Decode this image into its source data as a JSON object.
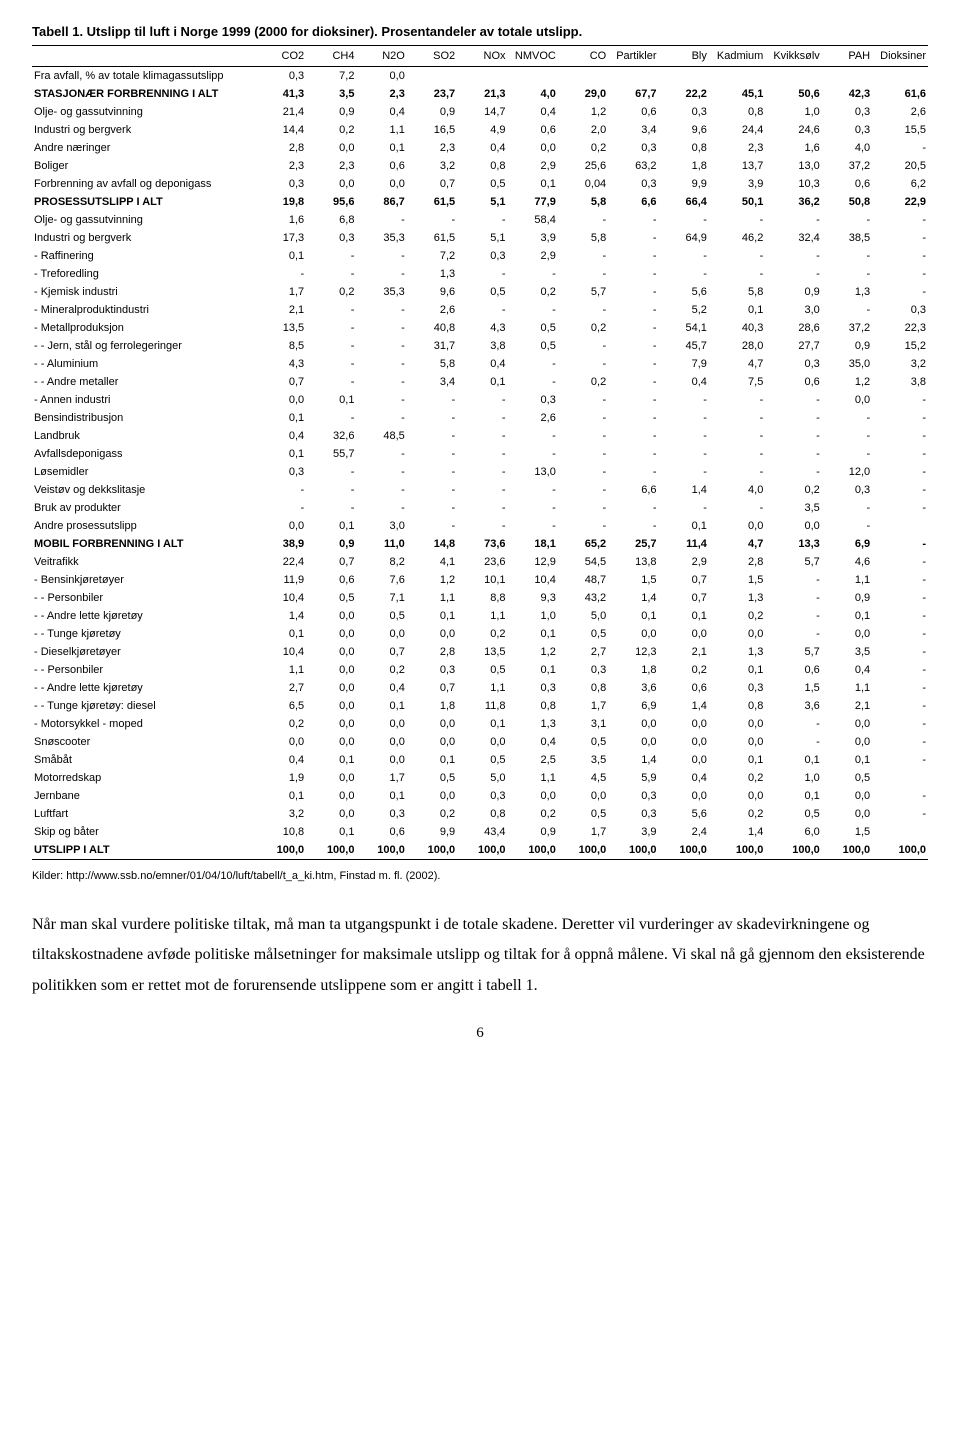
{
  "title": "Tabell 1. Utslipp til luft i Norge 1999 (2000 for dioksiner). Prosentandeler av totale utslipp.",
  "columns": [
    "",
    "CO2",
    "CH4",
    "N2O",
    "SO2",
    "NOx",
    "NMVOC",
    "CO",
    "Partikler",
    "Bly",
    "Kadmium",
    "Kvikksølv",
    "PAH",
    "Dioksiner"
  ],
  "rows": [
    {
      "bold": false,
      "cells": [
        "Fra avfall, % av totale klimagassutslipp",
        "0,3",
        "7,2",
        "0,0",
        "",
        "",
        "",
        "",
        "",
        "",
        "",
        "",
        "",
        ""
      ]
    },
    {
      "bold": true,
      "cells": [
        "STASJONÆR FORBRENNING I ALT",
        "41,3",
        "3,5",
        "2,3",
        "23,7",
        "21,3",
        "4,0",
        "29,0",
        "67,7",
        "22,2",
        "45,1",
        "50,6",
        "42,3",
        "61,6"
      ]
    },
    {
      "bold": false,
      "cells": [
        "Olje- og gassutvinning",
        "21,4",
        "0,9",
        "0,4",
        "0,9",
        "14,7",
        "0,4",
        "1,2",
        "0,6",
        "0,3",
        "0,8",
        "1,0",
        "0,3",
        "2,6"
      ]
    },
    {
      "bold": false,
      "cells": [
        "Industri og bergverk",
        "14,4",
        "0,2",
        "1,1",
        "16,5",
        "4,9",
        "0,6",
        "2,0",
        "3,4",
        "9,6",
        "24,4",
        "24,6",
        "0,3",
        "15,5"
      ]
    },
    {
      "bold": false,
      "cells": [
        "Andre næringer",
        "2,8",
        "0,0",
        "0,1",
        "2,3",
        "0,4",
        "0,0",
        "0,2",
        "0,3",
        "0,8",
        "2,3",
        "1,6",
        "4,0",
        "-"
      ]
    },
    {
      "bold": false,
      "cells": [
        "Boliger",
        "2,3",
        "2,3",
        "0,6",
        "3,2",
        "0,8",
        "2,9",
        "25,6",
        "63,2",
        "1,8",
        "13,7",
        "13,0",
        "37,2",
        "20,5"
      ]
    },
    {
      "bold": false,
      "cells": [
        "Forbrenning av avfall og deponigass",
        "0,3",
        "0,0",
        "0,0",
        "0,7",
        "0,5",
        "0,1",
        "0,04",
        "0,3",
        "9,9",
        "3,9",
        "10,3",
        "0,6",
        "6,2"
      ]
    },
    {
      "bold": true,
      "cells": [
        "PROSESSUTSLIPP I ALT",
        "19,8",
        "95,6",
        "86,7",
        "61,5",
        "5,1",
        "77,9",
        "5,8",
        "6,6",
        "66,4",
        "50,1",
        "36,2",
        "50,8",
        "22,9"
      ]
    },
    {
      "bold": false,
      "cells": [
        "Olje- og gassutvinning",
        "1,6",
        "6,8",
        "-",
        "-",
        "-",
        "58,4",
        "-",
        "-",
        "-",
        "-",
        "-",
        "-",
        "-"
      ]
    },
    {
      "bold": false,
      "cells": [
        "Industri og bergverk",
        "17,3",
        "0,3",
        "35,3",
        "61,5",
        "5,1",
        "3,9",
        "5,8",
        "-",
        "64,9",
        "46,2",
        "32,4",
        "38,5",
        "-"
      ]
    },
    {
      "bold": false,
      "cells": [
        " - Raffinering",
        "0,1",
        "-",
        "-",
        "7,2",
        "0,3",
        "2,9",
        "-",
        "-",
        "-",
        "-",
        "-",
        "-",
        "-"
      ]
    },
    {
      "bold": false,
      "cells": [
        " - Treforedling",
        "-",
        "-",
        "-",
        "1,3",
        "-",
        "-",
        "-",
        "-",
        "-",
        "-",
        "-",
        "-",
        "-"
      ]
    },
    {
      "bold": false,
      "cells": [
        " - Kjemisk industri",
        "1,7",
        "0,2",
        "35,3",
        "9,6",
        "0,5",
        "0,2",
        "5,7",
        "-",
        "5,6",
        "5,8",
        "0,9",
        "1,3",
        "-"
      ]
    },
    {
      "bold": false,
      "cells": [
        " - Mineralproduktindustri",
        "2,1",
        "-",
        "-",
        "2,6",
        "-",
        "-",
        "-",
        "-",
        "5,2",
        "0,1",
        "3,0",
        "-",
        "0,3"
      ]
    },
    {
      "bold": false,
      "cells": [
        " - Metallproduksjon",
        "13,5",
        "-",
        "-",
        "40,8",
        "4,3",
        "0,5",
        "0,2",
        "-",
        "54,1",
        "40,3",
        "28,6",
        "37,2",
        "22,3"
      ]
    },
    {
      "bold": false,
      "cells": [
        "- - Jern, stål og ferrolegeringer",
        "8,5",
        "-",
        "-",
        "31,7",
        "3,8",
        "0,5",
        "-",
        "-",
        "45,7",
        "28,0",
        "27,7",
        "0,9",
        "15,2"
      ]
    },
    {
      "bold": false,
      "cells": [
        "- - Aluminium",
        "4,3",
        "-",
        "-",
        "5,8",
        "0,4",
        "-",
        "-",
        "-",
        "7,9",
        "4,7",
        "0,3",
        "35,0",
        "3,2"
      ]
    },
    {
      "bold": false,
      "cells": [
        "- - Andre metaller",
        "0,7",
        "-",
        "-",
        "3,4",
        "0,1",
        "-",
        "0,2",
        "-",
        "0,4",
        "7,5",
        "0,6",
        "1,2",
        "3,8"
      ]
    },
    {
      "bold": false,
      "cells": [
        " - Annen industri",
        "0,0",
        "0,1",
        "-",
        "-",
        "-",
        "0,3",
        "-",
        "-",
        "-",
        "-",
        "-",
        "0,0",
        "-"
      ]
    },
    {
      "bold": false,
      "cells": [
        "Bensindistribusjon",
        "0,1",
        "-",
        "-",
        "-",
        "-",
        "2,6",
        "-",
        "-",
        "-",
        "-",
        "-",
        "-",
        "-"
      ]
    },
    {
      "bold": false,
      "cells": [
        "Landbruk",
        "0,4",
        "32,6",
        "48,5",
        "-",
        "-",
        "-",
        "-",
        "-",
        "-",
        "-",
        "-",
        "-",
        "-"
      ]
    },
    {
      "bold": false,
      "cells": [
        "Avfallsdeponigass",
        "0,1",
        "55,7",
        "-",
        "-",
        "-",
        "-",
        "-",
        "-",
        "-",
        "-",
        "-",
        "-",
        "-"
      ]
    },
    {
      "bold": false,
      "cells": [
        "Løsemidler",
        "0,3",
        "-",
        "-",
        "-",
        "-",
        "13,0",
        "-",
        "-",
        "-",
        "-",
        "-",
        "12,0",
        "-"
      ]
    },
    {
      "bold": false,
      "cells": [
        "Veistøv og dekkslitasje",
        "-",
        "-",
        "-",
        "-",
        "-",
        "-",
        "-",
        "6,6",
        "1,4",
        "4,0",
        "0,2",
        "0,3",
        "-"
      ]
    },
    {
      "bold": false,
      "cells": [
        "Bruk av produkter",
        "-",
        "-",
        "-",
        "-",
        "-",
        "-",
        "-",
        "-",
        "-",
        "-",
        "3,5",
        "-",
        "-"
      ]
    },
    {
      "bold": false,
      "cells": [
        "Andre prosessutslipp",
        "0,0",
        "0,1",
        "3,0",
        "-",
        "-",
        "-",
        "-",
        "-",
        "0,1",
        "0,0",
        "0,0",
        "-",
        ""
      ]
    },
    {
      "bold": true,
      "cells": [
        "MOBIL FORBRENNING I ALT",
        "38,9",
        "0,9",
        "11,0",
        "14,8",
        "73,6",
        "18,1",
        "65,2",
        "25,7",
        "11,4",
        "4,7",
        "13,3",
        "6,9",
        "-"
      ]
    },
    {
      "bold": false,
      "cells": [
        "Veitrafikk",
        "22,4",
        "0,7",
        "8,2",
        "4,1",
        "23,6",
        "12,9",
        "54,5",
        "13,8",
        "2,9",
        "2,8",
        "5,7",
        "4,6",
        "-"
      ]
    },
    {
      "bold": false,
      "cells": [
        " - Bensinkjøretøyer",
        "11,9",
        "0,6",
        "7,6",
        "1,2",
        "10,1",
        "10,4",
        "48,7",
        "1,5",
        "0,7",
        "1,5",
        "-",
        "1,1",
        "-"
      ]
    },
    {
      "bold": false,
      "cells": [
        "- - Personbiler",
        "10,4",
        "0,5",
        "7,1",
        "1,1",
        "8,8",
        "9,3",
        "43,2",
        "1,4",
        "0,7",
        "1,3",
        "-",
        "0,9",
        "-"
      ]
    },
    {
      "bold": false,
      "cells": [
        "- - Andre lette kjøretøy",
        "1,4",
        "0,0",
        "0,5",
        "0,1",
        "1,1",
        "1,0",
        "5,0",
        "0,1",
        "0,1",
        "0,2",
        "-",
        "0,1",
        "-"
      ]
    },
    {
      "bold": false,
      "cells": [
        "- - Tunge kjøretøy",
        "0,1",
        "0,0",
        "0,0",
        "0,0",
        "0,2",
        "0,1",
        "0,5",
        "0,0",
        "0,0",
        "0,0",
        "-",
        "0,0",
        "-"
      ]
    },
    {
      "bold": false,
      "cells": [
        " - Dieselkjøretøyer",
        "10,4",
        "0,0",
        "0,7",
        "2,8",
        "13,5",
        "1,2",
        "2,7",
        "12,3",
        "2,1",
        "1,3",
        "5,7",
        "3,5",
        "-"
      ]
    },
    {
      "bold": false,
      "cells": [
        "- - Personbiler",
        "1,1",
        "0,0",
        "0,2",
        "0,3",
        "0,5",
        "0,1",
        "0,3",
        "1,8",
        "0,2",
        "0,1",
        "0,6",
        "0,4",
        "-"
      ]
    },
    {
      "bold": false,
      "cells": [
        "- - Andre lette kjøretøy",
        "2,7",
        "0,0",
        "0,4",
        "0,7",
        "1,1",
        "0,3",
        "0,8",
        "3,6",
        "0,6",
        "0,3",
        "1,5",
        "1,1",
        "-"
      ]
    },
    {
      "bold": false,
      "cells": [
        "- - Tunge kjøretøy: diesel",
        "6,5",
        "0,0",
        "0,1",
        "1,8",
        "11,8",
        "0,8",
        "1,7",
        "6,9",
        "1,4",
        "0,8",
        "3,6",
        "2,1",
        "-"
      ]
    },
    {
      "bold": false,
      "cells": [
        " - Motorsykkel - moped",
        "0,2",
        "0,0",
        "0,0",
        "0,0",
        "0,1",
        "1,3",
        "3,1",
        "0,0",
        "0,0",
        "0,0",
        "-",
        "0,0",
        "-"
      ]
    },
    {
      "bold": false,
      "cells": [
        "Snøscooter",
        "0,0",
        "0,0",
        "0,0",
        "0,0",
        "0,0",
        "0,4",
        "0,5",
        "0,0",
        "0,0",
        "0,0",
        "-",
        "0,0",
        "-"
      ]
    },
    {
      "bold": false,
      "cells": [
        "Småbåt",
        "0,4",
        "0,1",
        "0,0",
        "0,1",
        "0,5",
        "2,5",
        "3,5",
        "1,4",
        "0,0",
        "0,1",
        "0,1",
        "0,1",
        "-"
      ]
    },
    {
      "bold": false,
      "cells": [
        "Motorredskap",
        "1,9",
        "0,0",
        "1,7",
        "0,5",
        "5,0",
        "1,1",
        "4,5",
        "5,9",
        "0,4",
        "0,2",
        "1,0",
        "0,5",
        ""
      ]
    },
    {
      "bold": false,
      "cells": [
        "Jernbane",
        "0,1",
        "0,0",
        "0,1",
        "0,0",
        "0,3",
        "0,0",
        "0,0",
        "0,3",
        "0,0",
        "0,0",
        "0,1",
        "0,0",
        "-"
      ]
    },
    {
      "bold": false,
      "cells": [
        "Luftfart",
        "3,2",
        "0,0",
        "0,3",
        "0,2",
        "0,8",
        "0,2",
        "0,5",
        "0,3",
        "5,6",
        "0,2",
        "0,5",
        "0,0",
        "-"
      ]
    },
    {
      "bold": false,
      "cells": [
        "Skip og båter",
        "10,8",
        "0,1",
        "0,6",
        "9,9",
        "43,4",
        "0,9",
        "1,7",
        "3,9",
        "2,4",
        "1,4",
        "6,0",
        "1,5",
        ""
      ]
    },
    {
      "bold": true,
      "last": true,
      "cells": [
        "UTSLIPP I ALT",
        "100,0",
        "100,0",
        "100,0",
        "100,0",
        "100,0",
        "100,0",
        "100,0",
        "100,0",
        "100,0",
        "100,0",
        "100,0",
        "100,0",
        "100,0"
      ]
    }
  ],
  "sources": "Kilder:  http://www.ssb.no/emner/01/04/10/luft/tabell/t_a_ki.htm, Finstad m. fl. (2002).",
  "paragraph": "Når man skal vurdere politiske tiltak, må man ta utgangspunkt i de totale skadene. Deretter vil vurderinger av skadevirkningene og tiltakskostnadene avføde politiske målsetninger for maksimale utslipp og tiltak for å oppnå målene. Vi skal nå gå gjennom den eksisterende politikken som er rettet mot de forurensende utslippene som er angitt i tabell 1.",
  "page_number": "6"
}
